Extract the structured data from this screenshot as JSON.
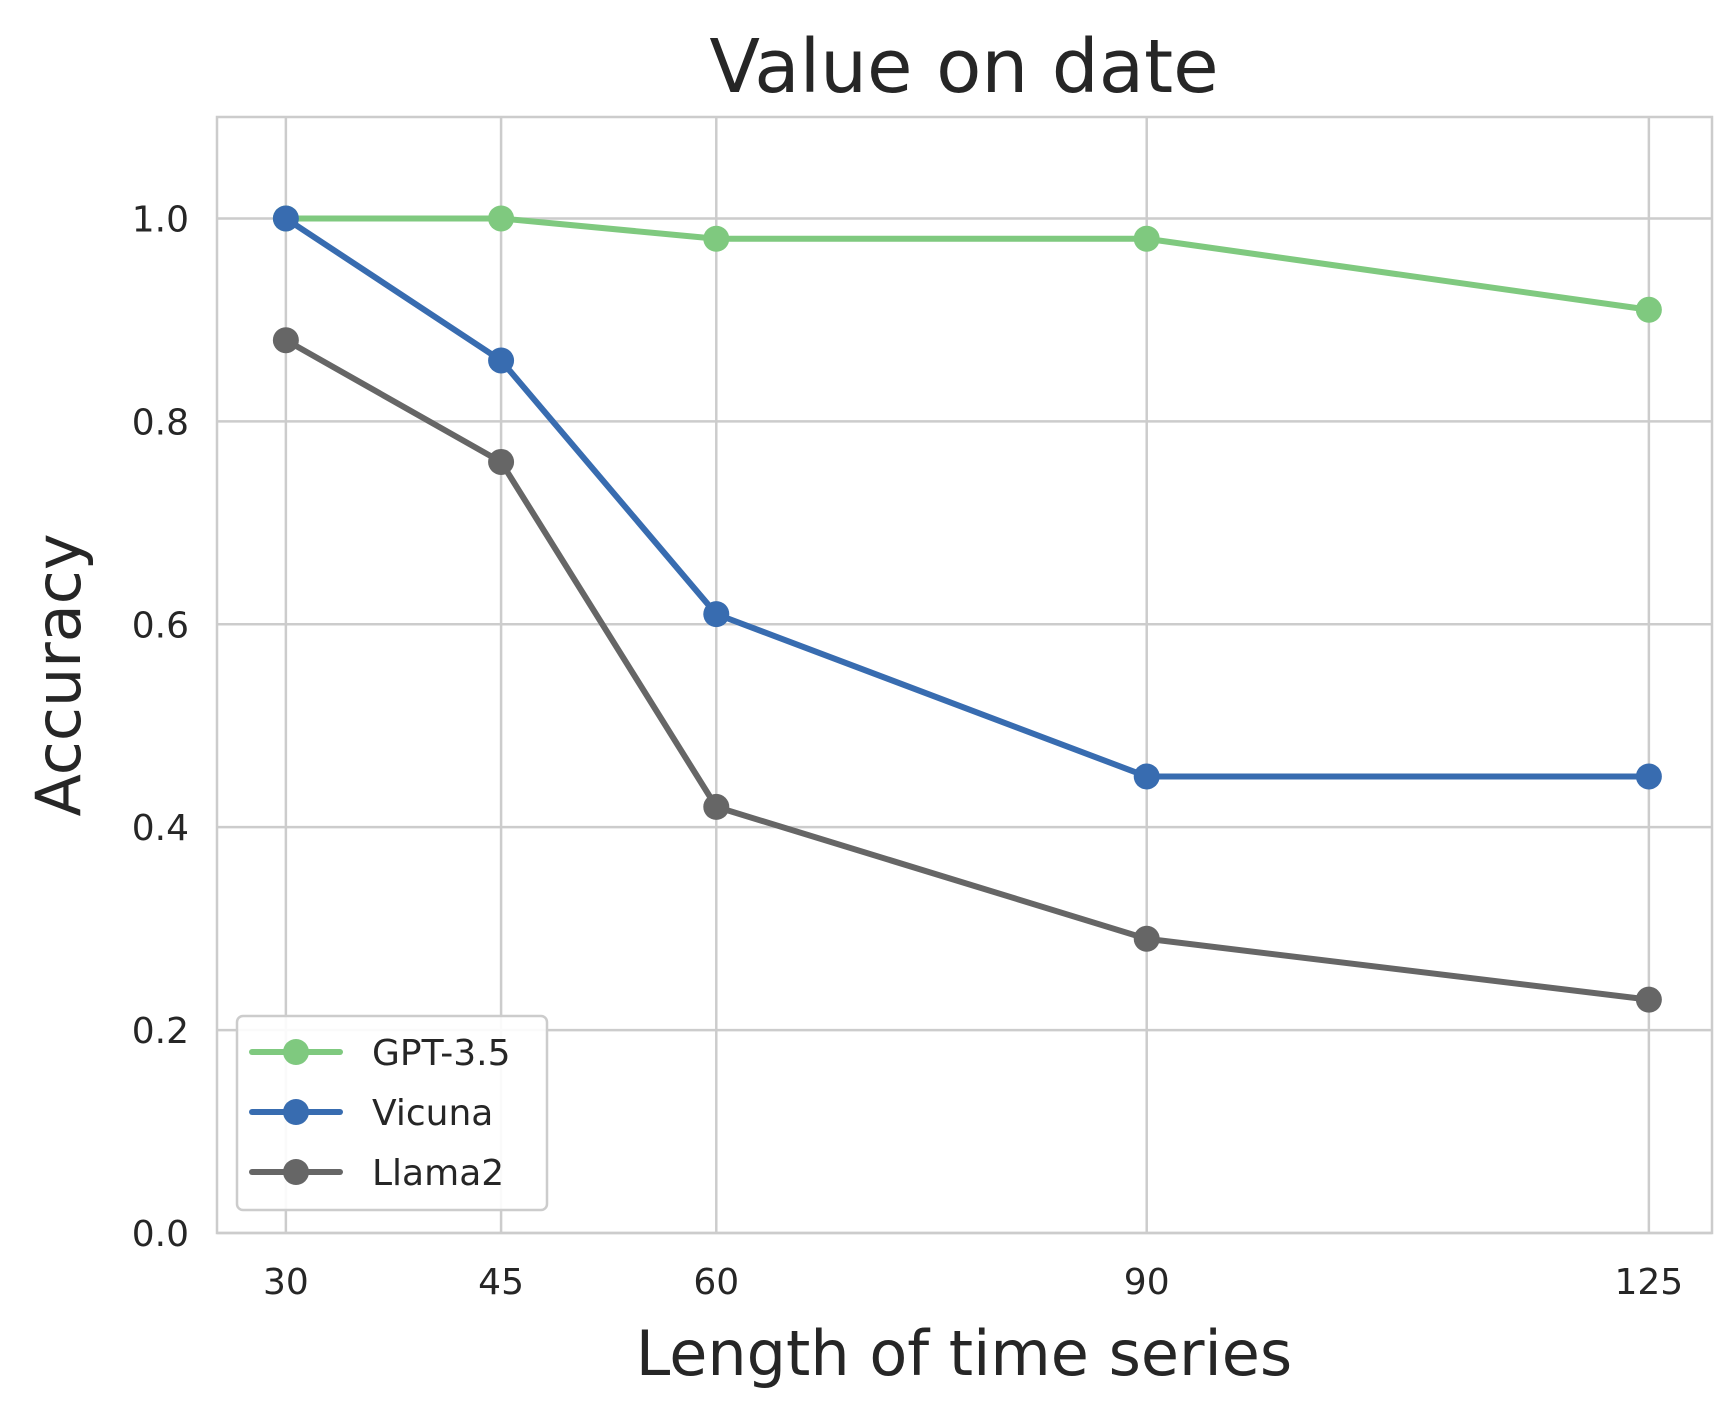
{
  "chart_data": {
    "type": "line",
    "title": "Value on date",
    "xlabel": "Length of time series",
    "ylabel": "Accuracy",
    "x": [
      30,
      45,
      60,
      90,
      125
    ],
    "x_ticks": [
      "30",
      "45",
      "60",
      "90",
      "125"
    ],
    "xlim": [
      25.2,
      129.4
    ],
    "ylim": [
      0.0,
      1.1
    ],
    "y_ticks": [
      "0.0",
      "0.2",
      "0.4",
      "0.6",
      "0.8",
      "1.0"
    ],
    "grid": true,
    "legend_position": "lower-left",
    "series": [
      {
        "name": "GPT-3.5",
        "color": "#7fc97f",
        "marker": "circle",
        "values": [
          1.0,
          1.0,
          0.98,
          0.98,
          0.91
        ]
      },
      {
        "name": "Vicuna",
        "color": "#386cb0",
        "marker": "circle",
        "values": [
          1.0,
          0.86,
          0.61,
          0.45,
          0.45
        ]
      },
      {
        "name": "Llama2",
        "color": "#666666",
        "marker": "circle",
        "values": [
          0.88,
          0.76,
          0.42,
          0.29,
          0.23
        ]
      }
    ]
  }
}
